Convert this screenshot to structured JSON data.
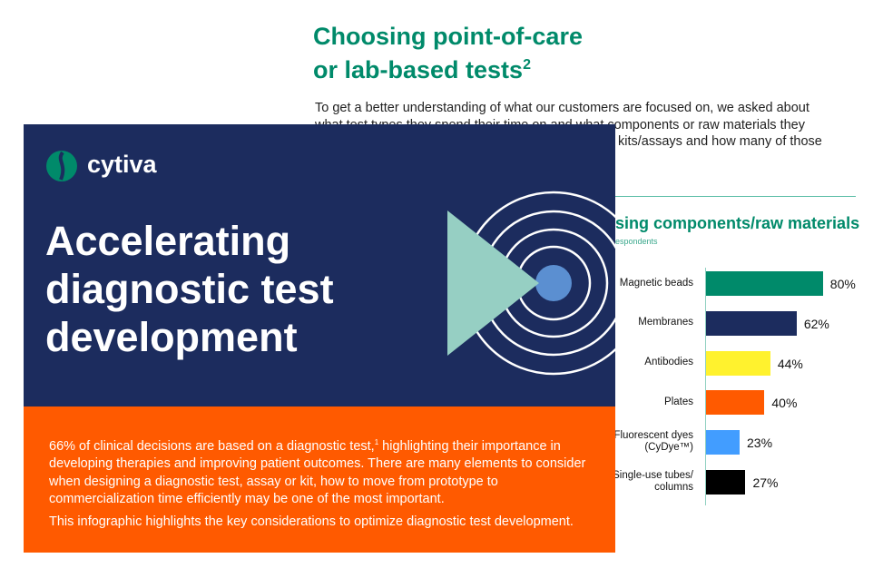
{
  "back_page": {
    "title_line1": "Choosing point-of-care",
    "title_line2": "or lab-based tests",
    "title_sup": "2",
    "intro_lines": [
      "To get a better understanding of what our customers are focused on, we asked about",
      "what test types they spend their time on and what components or raw materials they",
      "kits/assays and how many of those"
    ],
    "chart_heading": "sing components/raw materials",
    "chart_subtitle": "espondents"
  },
  "chart_data": {
    "type": "bar",
    "orientation": "horizontal",
    "categories": [
      "Magnetic beads",
      "Membranes",
      "Antibodies",
      "Plates",
      "Fluorescent dyes (CyDye™)",
      "Single-use tubes/ columns"
    ],
    "category_lines": [
      [
        "Magnetic beads"
      ],
      [
        "Membranes"
      ],
      [
        "Antibodies"
      ],
      [
        "Plates"
      ],
      [
        "Fluorescent dyes",
        "(CyDye™)"
      ],
      [
        "Single-use tubes/",
        "columns"
      ]
    ],
    "values": [
      80,
      62,
      44,
      40,
      23,
      27
    ],
    "value_labels": [
      "80%",
      "62%",
      "44%",
      "40%",
      "23%",
      "27%"
    ],
    "colors": [
      "#008a6a",
      "#1c2c5e",
      "#fff22e",
      "#ff5a00",
      "#429dff",
      "#000000"
    ],
    "title": "",
    "xlabel": "",
    "ylabel": "",
    "grid": false
  },
  "front_page": {
    "brand": "cytiva",
    "headline": [
      "Accelerating",
      "diagnostic test",
      "development"
    ],
    "paragraph1_a": "66% of clinical decisions are based on a diagnostic test,",
    "paragraph1_sup": "1",
    "paragraph1_b": " highlighting their importance in developing therapies and improving patient outcomes. There are many elements to consider when designing a diagnostic test, assay or kit, how to move from prototype to commercialization time efficiently may be one of the most important.",
    "paragraph2": "This infographic highlights the key considerations to optimize diagnostic test development.",
    "colors": {
      "navy": "#1c2c5e",
      "orange": "#ff5a00",
      "green": "#008a6a",
      "teal": "#96cfc3",
      "blue": "#5b8fd1"
    }
  }
}
